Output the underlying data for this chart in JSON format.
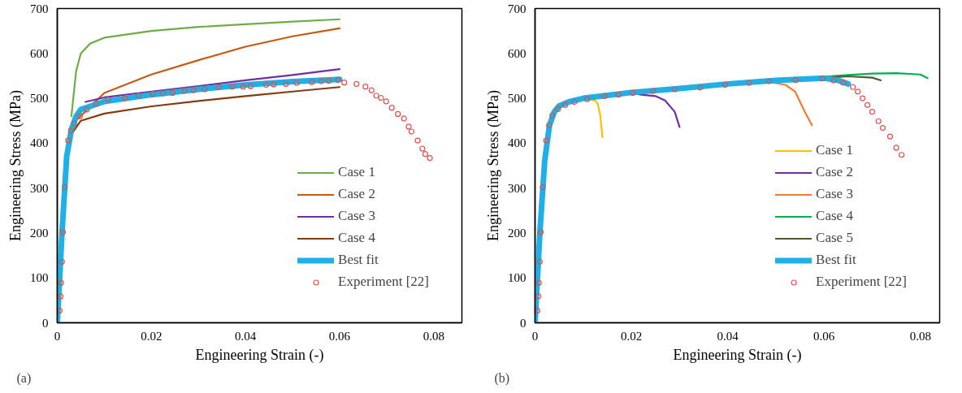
{
  "chart_data": [
    {
      "type": "line",
      "xlabel": "Engineering Strain (-)",
      "ylabel": "Engineering Stress (MPa)",
      "xlim": [
        0,
        0.086
      ],
      "ylim": [
        0,
        700
      ],
      "xticks": [
        0,
        0.02,
        0.04,
        0.06,
        0.08
      ],
      "yticks": [
        0,
        100,
        200,
        300,
        400,
        500,
        600,
        700
      ],
      "grid": false,
      "legend": "bottom right",
      "annotations": [
        "(a)"
      ],
      "series": [
        {
          "name": "Case 1",
          "color": "#70ad47",
          "x": [
            0.003,
            0.004,
            0.005,
            0.007,
            0.01,
            0.02,
            0.03,
            0.04,
            0.05,
            0.06
          ],
          "values": [
            460,
            560,
            600,
            622,
            635,
            650,
            659,
            665,
            671,
            676
          ]
        },
        {
          "name": "Case 2",
          "color": "#c55a11",
          "x": [
            0.003,
            0.01,
            0.02,
            0.03,
            0.04,
            0.05,
            0.06
          ],
          "values": [
            440,
            512,
            553,
            585,
            615,
            638,
            656
          ]
        },
        {
          "name": "Case 3",
          "color": "#7030a0",
          "x": [
            0.006,
            0.01,
            0.02,
            0.03,
            0.04,
            0.05,
            0.06
          ],
          "values": [
            492,
            502,
            515,
            527,
            540,
            552,
            565
          ]
        },
        {
          "name": "Case 4",
          "color": "#843c0c",
          "x": [
            0.003,
            0.005,
            0.01,
            0.02,
            0.03,
            0.04,
            0.05,
            0.06
          ],
          "values": [
            420,
            450,
            466,
            482,
            494,
            505,
            515,
            525
          ]
        },
        {
          "name": "Best fit",
          "color": "#1fb0e8",
          "x": [
            0,
            0.001,
            0.002,
            0.003,
            0.004,
            0.005,
            0.01,
            0.02,
            0.03,
            0.04,
            0.05,
            0.06
          ],
          "values": [
            0,
            200,
            370,
            430,
            460,
            475,
            493,
            508,
            520,
            530,
            537,
            542
          ]
        },
        {
          "name": "Experiment [22]",
          "type": "scatter",
          "marker": "circle",
          "color": "#d9534f",
          "x": [
            0.0005,
            0.0007,
            0.0008,
            0.001,
            0.0012,
            0.0016,
            0.0023,
            0.0029,
            0.0036,
            0.0048,
            0.0063,
            0.0082,
            0.0108,
            0.0144,
            0.0173,
            0.0203,
            0.0225,
            0.0245,
            0.0271,
            0.029,
            0.0313,
            0.0343,
            0.0372,
            0.0395,
            0.0411,
            0.0444,
            0.046,
            0.0486,
            0.0509,
            0.0541,
            0.0561,
            0.0577,
            0.0597,
            0.061,
            0.0636,
            0.0655,
            0.0668,
            0.0678,
            0.0688,
            0.0699,
            0.0711,
            0.0724,
            0.0737,
            0.0747,
            0.0753,
            0.0766,
            0.0776,
            0.0782,
            0.0792
          ],
          "values": [
            27,
            59,
            89,
            136,
            202,
            302,
            406,
            428,
            444,
            460,
            475,
            488,
            497,
            500,
            506,
            510,
            511,
            512,
            517,
            518,
            520,
            525,
            526,
            526,
            527,
            530,
            531,
            532,
            534,
            536,
            538,
            539,
            541,
            535,
            532,
            526,
            518,
            506,
            501,
            493,
            479,
            465,
            455,
            437,
            426,
            406,
            388,
            376,
            367
          ]
        }
      ]
    },
    {
      "type": "line",
      "xlabel": "Engineering Strain (-)",
      "ylabel": "Engineering Stress (MPa)",
      "xlim": [
        0,
        0.084
      ],
      "ylim": [
        0,
        700
      ],
      "xticks": [
        0,
        0.02,
        0.04,
        0.06,
        0.08
      ],
      "yticks": [
        0,
        100,
        200,
        300,
        400,
        500,
        600,
        700
      ],
      "grid": false,
      "legend": "bottom right",
      "annotations": [
        "(b)"
      ],
      "series": [
        {
          "name": "Case 1",
          "color": "#ffc000",
          "x": [
            0.01,
            0.012,
            0.0125,
            0.013,
            0.0135,
            0.014
          ],
          "values": [
            500,
            496,
            495,
            488,
            465,
            413
          ]
        },
        {
          "name": "Case 2",
          "color": "#7030a0",
          "x": [
            0.02,
            0.022,
            0.025,
            0.027,
            0.029,
            0.03
          ],
          "values": [
            513,
            508,
            505,
            495,
            470,
            436
          ]
        },
        {
          "name": "Case 3",
          "color": "#ed7d31",
          "x": [
            0.04,
            0.048,
            0.052,
            0.054,
            0.056,
            0.0575
          ],
          "values": [
            532,
            538,
            530,
            515,
            470,
            440
          ]
        },
        {
          "name": "Case 4",
          "color": "#00b050",
          "x": [
            0.05,
            0.06,
            0.065,
            0.07,
            0.075,
            0.08,
            0.0815
          ],
          "values": [
            540,
            548,
            552,
            555,
            556,
            553,
            545
          ]
        },
        {
          "name": "Case 5",
          "color": "#4e5b31",
          "x": [
            0.062,
            0.065,
            0.07,
            0.0718
          ],
          "values": [
            547,
            549,
            546,
            540
          ]
        },
        {
          "name": "Best fit",
          "color": "#1fb0e8",
          "x": [
            0,
            0.001,
            0.002,
            0.003,
            0.004,
            0.005,
            0.007,
            0.01,
            0.02,
            0.03,
            0.04,
            0.05,
            0.06,
            0.063,
            0.065
          ],
          "values": [
            0,
            200,
            360,
            440,
            470,
            483,
            492,
            500,
            513,
            522,
            532,
            540,
            545,
            540,
            532
          ]
        },
        {
          "name": "Experiment [22]",
          "type": "scatter",
          "marker": "circle",
          "color": "#d9534f",
          "x": [
            0.0005,
            0.0007,
            0.0008,
            0.001,
            0.0012,
            0.0016,
            0.0023,
            0.0029,
            0.0036,
            0.0048,
            0.0063,
            0.0082,
            0.0108,
            0.0144,
            0.0173,
            0.0203,
            0.0245,
            0.029,
            0.0343,
            0.0395,
            0.0444,
            0.0486,
            0.0541,
            0.0597,
            0.062,
            0.064,
            0.066,
            0.067,
            0.068,
            0.069,
            0.07,
            0.0713,
            0.0722,
            0.0737,
            0.075,
            0.0761
          ],
          "values": [
            27,
            59,
            89,
            136,
            202,
            302,
            406,
            440,
            462,
            476,
            485,
            492,
            498,
            505,
            508,
            512,
            516,
            520,
            524,
            530,
            534,
            538,
            541,
            544,
            540,
            535,
            525,
            515,
            500,
            485,
            470,
            449,
            434,
            415,
            390,
            374
          ]
        }
      ]
    }
  ]
}
